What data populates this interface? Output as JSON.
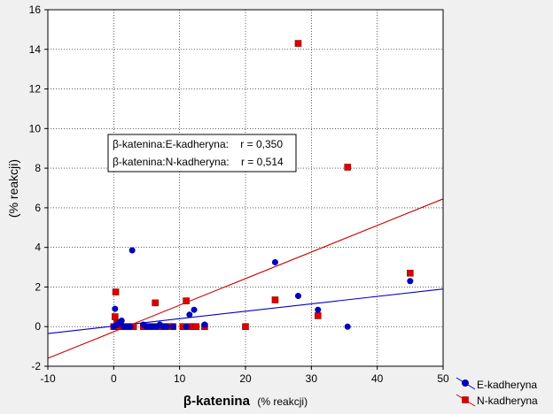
{
  "chart_data": {
    "type": "scatter",
    "xlabel_main": "β-katenina",
    "xlabel_unit": "(% reakcji)",
    "ylabel": "(% reakcji)",
    "xlim": [
      -10,
      50
    ],
    "ylim": [
      -2,
      16
    ],
    "xticks": [
      -10,
      0,
      10,
      20,
      30,
      40,
      50
    ],
    "yticks": [
      -2,
      0,
      2,
      4,
      6,
      8,
      10,
      12,
      14,
      16
    ],
    "grid": true,
    "legend_position": "bottom-right",
    "annotation": [
      "β-katenina:E-kadheryna:    r = 0,350",
      "β-katenina:N-kadheryna:    r = 0,514"
    ],
    "series": [
      {
        "name": "E-kadheryna",
        "marker": "circle",
        "color": "#0000cc",
        "points": [
          [
            0,
            0
          ],
          [
            0.2,
            0.9
          ],
          [
            0.5,
            0.1
          ],
          [
            0.8,
            0.2
          ],
          [
            1.2,
            0.3
          ],
          [
            1.5,
            0
          ],
          [
            2,
            0
          ],
          [
            2.5,
            0
          ],
          [
            2.8,
            3.85
          ],
          [
            4.5,
            0.1
          ],
          [
            5,
            0
          ],
          [
            5.5,
            0
          ],
          [
            6,
            0
          ],
          [
            6.5,
            0
          ],
          [
            7,
            0.1
          ],
          [
            7.5,
            0
          ],
          [
            8,
            0
          ],
          [
            9,
            0
          ],
          [
            11,
            0
          ],
          [
            11.5,
            0.6
          ],
          [
            12.2,
            0.85
          ],
          [
            13.8,
            0.1
          ],
          [
            24.5,
            3.25
          ],
          [
            28,
            1.55
          ],
          [
            31,
            0.85
          ],
          [
            35.5,
            0
          ],
          [
            45,
            2.3
          ]
        ],
        "trend": [
          [
            -10,
            -0.35
          ],
          [
            50,
            1.9
          ]
        ]
      },
      {
        "name": "N-kadheryna",
        "marker": "square",
        "color": "#cc0000",
        "points": [
          [
            0,
            0
          ],
          [
            0.2,
            0.5
          ],
          [
            0.3,
            1.75
          ],
          [
            0.5,
            0.2
          ],
          [
            0.8,
            0
          ],
          [
            1,
            0.1
          ],
          [
            1.5,
            0
          ],
          [
            2,
            0
          ],
          [
            2.5,
            0
          ],
          [
            3,
            0
          ],
          [
            4.5,
            0
          ],
          [
            5,
            0
          ],
          [
            5.5,
            0
          ],
          [
            6,
            0
          ],
          [
            6.3,
            1.2
          ],
          [
            6.8,
            0
          ],
          [
            7.5,
            0
          ],
          [
            8,
            0
          ],
          [
            8.5,
            0
          ],
          [
            9,
            0
          ],
          [
            10.5,
            0
          ],
          [
            11,
            1.3
          ],
          [
            11.5,
            0
          ],
          [
            12,
            0
          ],
          [
            12.5,
            0
          ],
          [
            13.8,
            0
          ],
          [
            20,
            0
          ],
          [
            24.5,
            1.35
          ],
          [
            28,
            14.3
          ],
          [
            31,
            0.55
          ],
          [
            35.5,
            8.05
          ],
          [
            45,
            2.7
          ]
        ],
        "trend": [
          [
            -10,
            -1.6
          ],
          [
            50,
            6.45
          ]
        ]
      }
    ]
  }
}
